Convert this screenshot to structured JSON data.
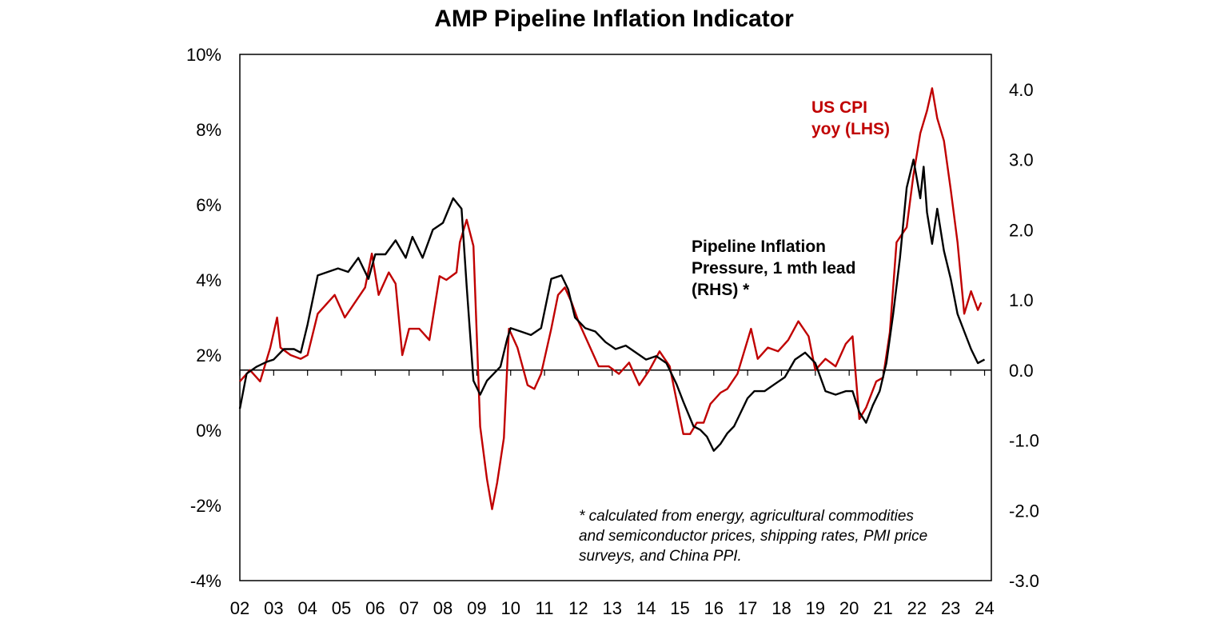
{
  "chart_data": {
    "type": "line",
    "title": "AMP Pipeline Inflation Indicator",
    "left_axis": {
      "range": [
        -4,
        10
      ],
      "ticks": [
        "-4%",
        "-2%",
        "0%",
        "2%",
        "4%",
        "6%",
        "8%",
        "10%"
      ],
      "tick_values": [
        -4,
        -2,
        0,
        2,
        4,
        6,
        8,
        10
      ]
    },
    "right_axis": {
      "range": [
        -3.0,
        4.5
      ],
      "ticks": [
        "-3.0",
        "-2.0",
        "-1.0",
        "0.0",
        "1.0",
        "2.0",
        "3.0",
        "4.0"
      ],
      "tick_values": [
        -3,
        -2,
        -1,
        0,
        1,
        2,
        3,
        4
      ]
    },
    "x_range": [
      2002,
      2024.2
    ],
    "x_ticks": [
      "02",
      "03",
      "04",
      "05",
      "06",
      "07",
      "08",
      "09",
      "10",
      "11",
      "12",
      "13",
      "14",
      "15",
      "16",
      "17",
      "18",
      "19",
      "20",
      "21",
      "22",
      "23",
      "24"
    ],
    "series": [
      {
        "name": "US CPI yoy (LHS)",
        "label_lines": [
          "US CPI",
          "yoy (LHS)"
        ],
        "axis": "left",
        "color": "#c00000",
        "x": [
          2002.0,
          2002.3,
          2002.6,
          2002.9,
          2003.1,
          2003.2,
          2003.5,
          2003.8,
          2004.0,
          2004.3,
          2004.5,
          2004.8,
          2005.1,
          2005.4,
          2005.7,
          2005.9,
          2006.1,
          2006.4,
          2006.6,
          2006.8,
          2007.0,
          2007.3,
          2007.6,
          2007.9,
          2008.1,
          2008.4,
          2008.5,
          2008.7,
          2008.9,
          2009.1,
          2009.3,
          2009.45,
          2009.6,
          2009.8,
          2009.95,
          2010.2,
          2010.5,
          2010.7,
          2010.9,
          2011.2,
          2011.4,
          2011.6,
          2011.8,
          2012.0,
          2012.3,
          2012.6,
          2012.9,
          2013.2,
          2013.5,
          2013.8,
          2014.1,
          2014.4,
          2014.7,
          2014.9,
          2015.1,
          2015.3,
          2015.5,
          2015.7,
          2015.9,
          2016.2,
          2016.4,
          2016.7,
          2016.9,
          2017.1,
          2017.3,
          2017.6,
          2017.9,
          2018.2,
          2018.5,
          2018.8,
          2019.0,
          2019.3,
          2019.6,
          2019.9,
          2020.1,
          2020.3,
          2020.5,
          2020.8,
          2021.0,
          2021.2,
          2021.4,
          2021.7,
          2021.9,
          2022.1,
          2022.3,
          2022.45,
          2022.6,
          2022.8,
          2023.0,
          2023.2,
          2023.4,
          2023.6,
          2023.8,
          2023.9
        ],
        "values": [
          1.3,
          1.6,
          1.3,
          2.2,
          3.0,
          2.2,
          2.0,
          1.9,
          2.0,
          3.1,
          3.3,
          3.6,
          3.0,
          3.4,
          3.8,
          4.7,
          3.6,
          4.2,
          3.9,
          2.0,
          2.7,
          2.7,
          2.4,
          4.1,
          4.0,
          4.2,
          5.0,
          5.6,
          4.9,
          0.1,
          -1.3,
          -2.1,
          -1.4,
          -0.2,
          2.7,
          2.2,
          1.2,
          1.1,
          1.5,
          2.7,
          3.6,
          3.8,
          3.4,
          2.9,
          2.3,
          1.7,
          1.7,
          1.5,
          1.8,
          1.2,
          1.6,
          2.1,
          1.7,
          0.8,
          -0.1,
          -0.1,
          0.2,
          0.2,
          0.7,
          1.0,
          1.1,
          1.5,
          2.1,
          2.7,
          1.9,
          2.2,
          2.1,
          2.4,
          2.9,
          2.5,
          1.6,
          1.9,
          1.7,
          2.3,
          2.5,
          0.3,
          0.6,
          1.3,
          1.4,
          2.6,
          5.0,
          5.4,
          6.8,
          7.9,
          8.5,
          9.1,
          8.3,
          7.7,
          6.4,
          5.0,
          3.1,
          3.7,
          3.2,
          3.4
        ]
      },
      {
        "name": "Pipeline Inflation Pressure, 1 mth lead (RHS) *",
        "label_lines": [
          "Pipeline Inflation",
          "Pressure, 1 mth lead",
          "(RHS) *"
        ],
        "axis": "right",
        "color": "#000000",
        "x": [
          2002.0,
          2002.2,
          2002.5,
          2002.8,
          2003.0,
          2003.3,
          2003.6,
          2003.8,
          2004.0,
          2004.3,
          2004.6,
          2004.9,
          2005.2,
          2005.5,
          2005.8,
          2006.0,
          2006.3,
          2006.6,
          2006.9,
          2007.1,
          2007.4,
          2007.7,
          2008.0,
          2008.3,
          2008.55,
          2008.7,
          2008.9,
          2009.1,
          2009.3,
          2009.5,
          2009.7,
          2009.9,
          2010.0,
          2010.3,
          2010.6,
          2010.9,
          2011.2,
          2011.5,
          2011.7,
          2011.9,
          2012.2,
          2012.5,
          2012.8,
          2013.1,
          2013.4,
          2013.7,
          2014.0,
          2014.3,
          2014.6,
          2014.9,
          2015.1,
          2015.4,
          2015.6,
          2015.8,
          2016.0,
          2016.2,
          2016.4,
          2016.6,
          2016.8,
          2017.0,
          2017.2,
          2017.5,
          2017.8,
          2018.1,
          2018.4,
          2018.7,
          2019.0,
          2019.3,
          2019.6,
          2019.9,
          2020.1,
          2020.3,
          2020.5,
          2020.7,
          2020.9,
          2021.1,
          2021.3,
          2021.5,
          2021.7,
          2021.9,
          2022.1,
          2022.2,
          2022.3,
          2022.45,
          2022.6,
          2022.8,
          2023.0,
          2023.2,
          2023.4,
          2023.6,
          2023.8,
          2024.0
        ],
        "values": [
          -0.55,
          -0.05,
          0.05,
          0.12,
          0.15,
          0.3,
          0.3,
          0.25,
          0.65,
          1.35,
          1.4,
          1.45,
          1.4,
          1.6,
          1.3,
          1.65,
          1.65,
          1.85,
          1.6,
          1.9,
          1.6,
          2.0,
          2.1,
          2.45,
          2.3,
          1.2,
          -0.15,
          -0.35,
          -0.15,
          -0.05,
          0.05,
          0.45,
          0.6,
          0.55,
          0.5,
          0.6,
          1.3,
          1.35,
          1.15,
          0.75,
          0.6,
          0.55,
          0.4,
          0.3,
          0.35,
          0.25,
          0.15,
          0.2,
          0.1,
          -0.2,
          -0.45,
          -0.8,
          -0.85,
          -0.95,
          -1.15,
          -1.05,
          -0.9,
          -0.8,
          -0.6,
          -0.4,
          -0.3,
          -0.3,
          -0.2,
          -0.1,
          0.15,
          0.25,
          0.1,
          -0.3,
          -0.35,
          -0.3,
          -0.3,
          -0.6,
          -0.75,
          -0.5,
          -0.3,
          0.1,
          0.8,
          1.6,
          2.6,
          3.0,
          2.45,
          2.9,
          2.25,
          1.8,
          2.3,
          1.7,
          1.3,
          0.8,
          0.55,
          0.3,
          0.1,
          0.15
        ]
      }
    ],
    "footnote": [
      "* calculated from energy, agricultural commodities",
      "and semiconductor prices, shipping rates, PMI price",
      "surveys, and China PPI."
    ]
  }
}
